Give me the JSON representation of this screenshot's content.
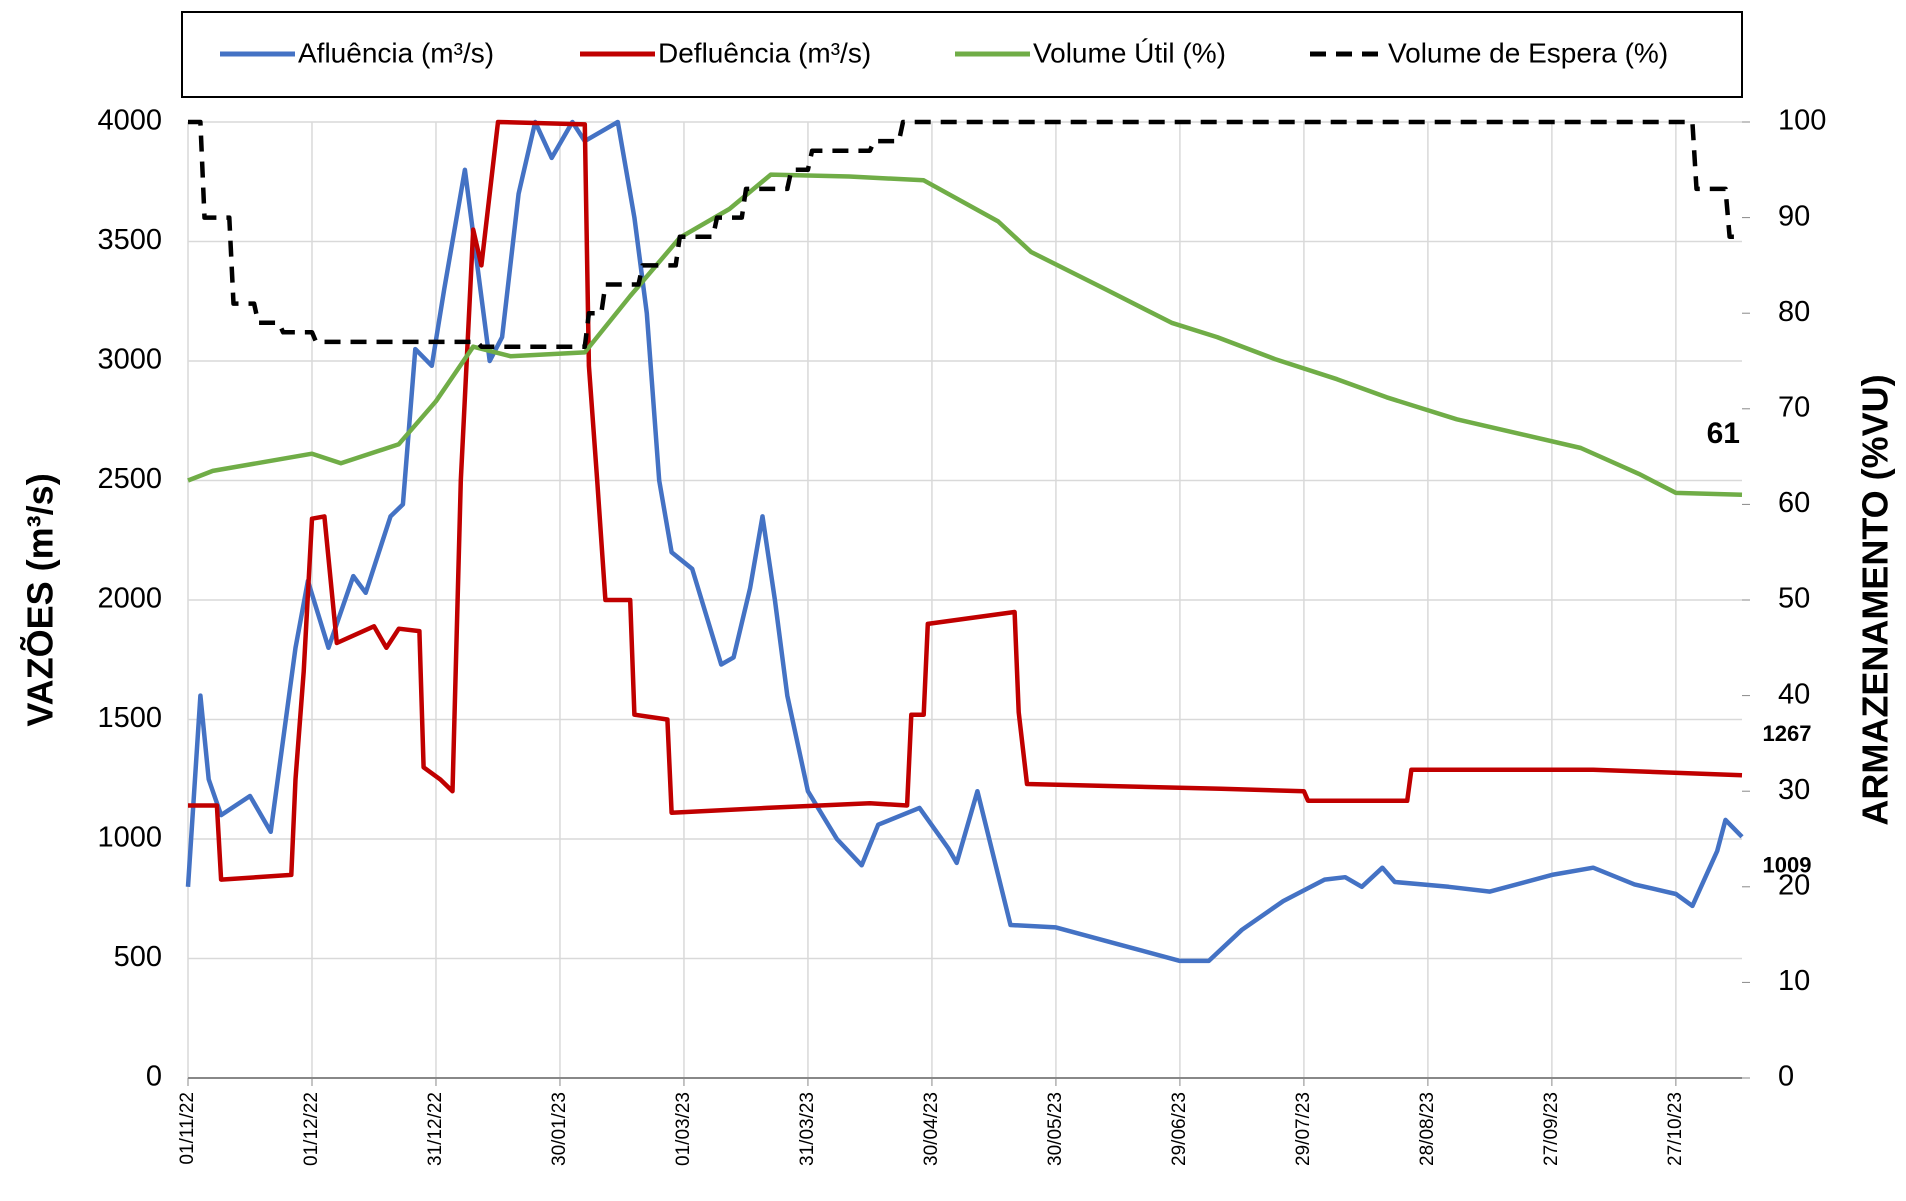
{
  "chart_data": {
    "type": "line",
    "y_label": "VAZÕES (m³/s)",
    "y2_label": "ARMAZENAMENTO (%VU)",
    "xlim": [
      "01/11/22",
      "12/11/23"
    ],
    "xticks": [
      "01/11/22",
      "01/12/22",
      "31/12/22",
      "30/01/23",
      "01/03/23",
      "31/03/23",
      "30/04/23",
      "30/05/23",
      "29/06/23",
      "29/07/23",
      "28/08/23",
      "27/09/23",
      "27/10/23"
    ],
    "ylim": [
      0,
      4000
    ],
    "yticks": [
      0,
      500,
      1000,
      1500,
      2000,
      2500,
      3000,
      3500,
      4000
    ],
    "y2lim": [
      0,
      100
    ],
    "y2ticks": [
      0,
      10,
      20,
      30,
      40,
      50,
      60,
      70,
      80,
      90,
      100
    ],
    "grid": true,
    "series": [
      {
        "name": "Afluência (m³/s)",
        "color": "#4472c4",
        "dash": false,
        "annotate_last": true,
        "x": [
          "01/11/22",
          "04/11/22",
          "06/11/22",
          "09/11/22",
          "16/11/22",
          "21/11/22",
          "27/11/22",
          "30/11/22",
          "05/12/22",
          "11/12/22",
          "14/12/22",
          "20/12/22",
          "23/12/22",
          "26/12/22",
          "30/12/22",
          "02/01/23",
          "07/01/23",
          "10/01/23",
          "13/01/23",
          "16/01/23",
          "20/01/23",
          "24/01/23",
          "28/01/23",
          "02/02/23",
          "05/02/23",
          "13/02/23",
          "17/02/23",
          "20/02/23",
          "23/02/23",
          "26/02/23",
          "03/03/23",
          "10/03/23",
          "13/03/23",
          "17/03/23",
          "20/03/23",
          "23/03/23",
          "26/03/23",
          "31/03/23",
          "07/04/23",
          "13/04/23",
          "17/04/23",
          "27/04/23",
          "04/05/23",
          "06/05/23",
          "11/05/23",
          "16/05/23",
          "19/05/23",
          "30/05/23",
          "14/06/23",
          "29/06/23",
          "06/07/23",
          "14/07/23",
          "24/07/23",
          "03/08/23",
          "08/08/23",
          "12/08/23",
          "17/08/23",
          "20/08/23",
          "02/09/23",
          "12/09/23",
          "27/09/23",
          "07/10/23",
          "17/10/23",
          "27/10/23",
          "31/10/23",
          "06/11/23",
          "08/11/23",
          "12/11/23"
        ],
        "values": [
          800,
          1600,
          1250,
          1100,
          1180,
          1030,
          1800,
          2080,
          1800,
          2100,
          2030,
          2350,
          2400,
          3050,
          2980,
          3300,
          3800,
          3400,
          3000,
          3100,
          3700,
          4000,
          3850,
          4000,
          3920,
          4000,
          3600,
          3200,
          2500,
          2200,
          2130,
          1730,
          1760,
          2050,
          2350,
          2000,
          1600,
          1200,
          1000,
          890,
          1060,
          1130,
          960,
          900,
          1200,
          850,
          640,
          630,
          560,
          490,
          490,
          620,
          740,
          830,
          840,
          800,
          880,
          820,
          800,
          780,
          850,
          880,
          810,
          770,
          720,
          950,
          1080,
          1009
        ]
      },
      {
        "name": "Defluência (m³/s)",
        "color": "#c00000",
        "dash": false,
        "annotate_last": true,
        "x": [
          "01/11/22",
          "08/11/22",
          "09/11/22",
          "26/11/22",
          "27/11/22",
          "29/11/22",
          "01/12/22",
          "04/12/22",
          "07/12/22",
          "16/12/22",
          "19/12/22",
          "22/12/22",
          "27/12/22",
          "28/12/22",
          "01/01/23",
          "04/01/23",
          "06/01/23",
          "09/01/23",
          "11/01/23",
          "15/01/23",
          "05/02/23",
          "06/02/23",
          "08/02/23",
          "10/02/23",
          "16/02/23",
          "17/02/23",
          "25/02/23",
          "26/02/23",
          "21/03/23",
          "15/04/23",
          "24/04/23",
          "25/04/23",
          "28/04/23",
          "29/04/23",
          "20/05/23",
          "21/05/23",
          "23/05/23",
          "09/07/23",
          "29/07/23",
          "30/07/23",
          "23/08/23",
          "24/08/23",
          "07/10/23",
          "12/11/23"
        ],
        "values": [
          1140,
          1140,
          830,
          850,
          1250,
          1700,
          2340,
          2350,
          1820,
          1890,
          1800,
          1880,
          1870,
          1300,
          1250,
          1200,
          2500,
          3550,
          3400,
          4000,
          3990,
          2980,
          2500,
          2000,
          2000,
          1520,
          1500,
          1110,
          1130,
          1150,
          1140,
          1520,
          1520,
          1900,
          1950,
          1530,
          1230,
          1210,
          1200,
          1160,
          1160,
          1290,
          1290,
          1267
        ]
      },
      {
        "name": "Volume Útil (%)",
        "color": "#70ad47",
        "dash": false,
        "axis": "y2",
        "annotate_last": true,
        "x": [
          "01/11/22",
          "07/11/22",
          "01/12/22",
          "08/12/22",
          "22/12/22",
          "31/12/22",
          "09/01/23",
          "18/01/23",
          "05/02/23",
          "16/02/23",
          "28/02/23",
          "12/03/23",
          "22/03/23",
          "10/04/23",
          "28/04/23",
          "16/05/23",
          "24/05/23",
          "11/06/23",
          "27/06/23",
          "08/07/23",
          "22/07/23",
          "06/08/23",
          "18/08/23",
          "04/09/23",
          "04/10/23",
          "18/10/23",
          "27/10/23",
          "12/11/23"
        ],
        "values": [
          62.5,
          63.5,
          65.3,
          64.3,
          66.3,
          70.8,
          76.5,
          75.5,
          75.9,
          81.8,
          87.9,
          90.9,
          94.5,
          94.3,
          93.9,
          89.6,
          86.4,
          82.5,
          79,
          77.5,
          75.2,
          73.1,
          71.2,
          68.9,
          65.9,
          63.2,
          61.2,
          61
        ]
      },
      {
        "name": "Volume de Espera (%)",
        "color": "#000000",
        "dash": true,
        "axis": "y2",
        "annotate_last": false,
        "x": [
          "01/11/22",
          "04/11/22",
          "05/11/22",
          "11/11/22",
          "12/11/22",
          "17/11/22",
          "18/11/22",
          "23/11/22",
          "24/11/22",
          "01/12/22",
          "02/12/22",
          "10/01/23",
          "11/01/23",
          "05/02/23",
          "06/02/23",
          "09/02/23",
          "10/02/23",
          "18/02/23",
          "19/02/23",
          "27/02/23",
          "28/02/23",
          "08/03/23",
          "09/03/23",
          "15/03/23",
          "16/03/23",
          "26/03/23",
          "27/03/23",
          "31/03/23",
          "01/04/23",
          "15/04/23",
          "16/04/23",
          "22/04/23",
          "23/04/23",
          "31/10/23",
          "01/11/23",
          "08/11/23",
          "09/11/23",
          "12/11/23"
        ],
        "values": [
          100,
          100,
          90,
          90,
          81,
          81,
          79,
          79,
          78,
          78,
          77,
          77,
          76.5,
          76.5,
          80,
          80,
          83,
          83,
          85,
          85,
          88,
          88,
          90,
          90,
          93,
          93,
          95,
          95,
          97,
          97,
          98,
          98,
          100,
          100,
          93,
          93,
          88,
          88
        ]
      }
    ]
  }
}
